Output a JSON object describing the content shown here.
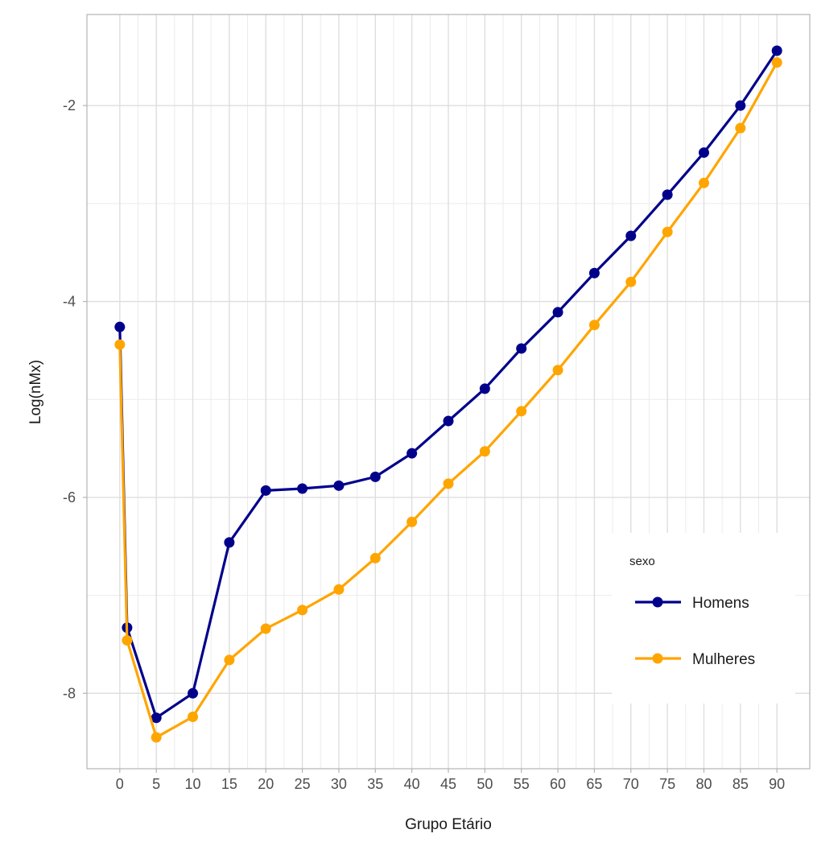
{
  "chart_data": {
    "type": "line",
    "xlabel": "Grupo Etário",
    "ylabel": "Log(nMx)",
    "x": [
      0,
      1,
      5,
      10,
      15,
      20,
      25,
      30,
      35,
      40,
      45,
      50,
      55,
      60,
      65,
      70,
      75,
      80,
      85,
      90
    ],
    "x_ticks": [
      0,
      5,
      10,
      15,
      20,
      25,
      30,
      35,
      40,
      45,
      50,
      55,
      60,
      65,
      70,
      75,
      80,
      85,
      90
    ],
    "y_ticks": [
      -2,
      -4,
      -6,
      -8
    ],
    "xlim": [
      -4.5,
      94.5
    ],
    "ylim": [
      -8.77,
      -1.07
    ],
    "grid": true,
    "legend": {
      "title": "sexo",
      "position": "bottom-right",
      "entries": [
        "Homens",
        "Mulheres"
      ]
    },
    "series": [
      {
        "name": "Homens",
        "color": "#00008B",
        "values": [
          -4.26,
          -7.33,
          -8.25,
          -8.0,
          -6.46,
          -5.93,
          -5.91,
          -5.88,
          -5.79,
          -5.55,
          -5.22,
          -4.89,
          -4.48,
          -4.11,
          -3.71,
          -3.33,
          -2.91,
          -2.48,
          -2.0,
          -1.44
        ]
      },
      {
        "name": "Mulheres",
        "color": "#FFA500",
        "values": [
          -4.44,
          -7.46,
          -8.45,
          -8.24,
          -7.66,
          -7.34,
          -7.15,
          -6.94,
          -6.62,
          -6.25,
          -5.86,
          -5.53,
          -5.12,
          -4.7,
          -4.24,
          -3.8,
          -3.29,
          -2.79,
          -2.23,
          -1.56
        ]
      }
    ]
  }
}
